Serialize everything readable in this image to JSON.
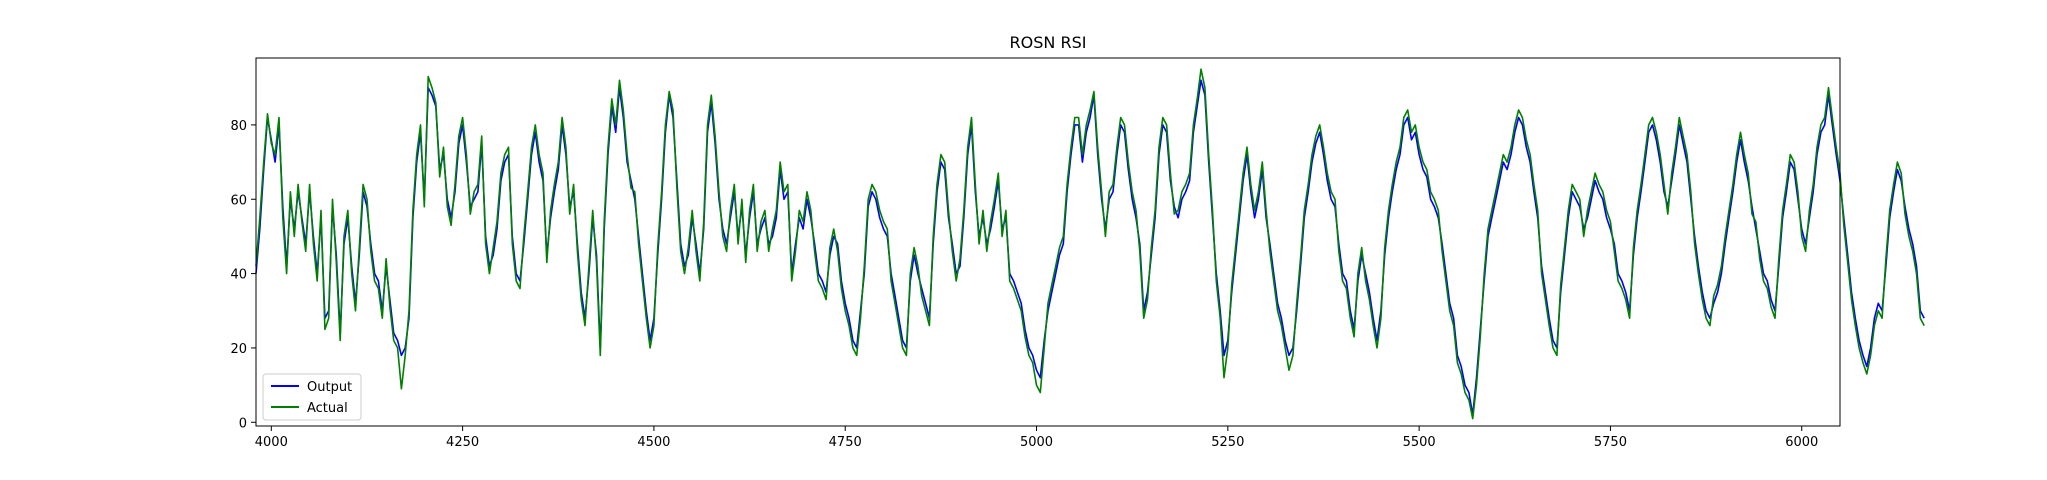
{
  "chart_data": {
    "type": "line",
    "title": "ROSN RSI",
    "xlabel": "",
    "ylabel": "",
    "xlim": [
      3980,
      6050
    ],
    "ylim": [
      -1,
      98
    ],
    "xticks": [
      4000,
      4250,
      4500,
      4750,
      5000,
      5250,
      5500,
      5750,
      6000
    ],
    "yticks": [
      0,
      20,
      40,
      60,
      80
    ],
    "grid": false,
    "legend_position": "lower-left",
    "x_start": 3980,
    "x_step": 5,
    "series": [
      {
        "name": "Output",
        "color": "#0000ff",
        "values": [
          40,
          52,
          68,
          82,
          76,
          70,
          80,
          58,
          42,
          60,
          52,
          62,
          55,
          48,
          62,
          50,
          40,
          55,
          28,
          30,
          58,
          45,
          24,
          48,
          55,
          42,
          32,
          45,
          62,
          58,
          48,
          40,
          38,
          30,
          42,
          33,
          24,
          22,
          18,
          20,
          28,
          55,
          70,
          78,
          60,
          90,
          88,
          85,
          68,
          72,
          60,
          55,
          62,
          75,
          80,
          70,
          58,
          60,
          62,
          75,
          50,
          42,
          45,
          52,
          65,
          70,
          72,
          50,
          40,
          38,
          48,
          60,
          72,
          78,
          70,
          65,
          45,
          55,
          62,
          68,
          80,
          72,
          58,
          62,
          48,
          35,
          28,
          40,
          55,
          45,
          20,
          52,
          72,
          85,
          78,
          90,
          82,
          70,
          65,
          60,
          50,
          40,
          30,
          22,
          28,
          45,
          60,
          78,
          88,
          82,
          65,
          48,
          42,
          45,
          55,
          48,
          40,
          52,
          78,
          86,
          75,
          60,
          52,
          48,
          55,
          62,
          50,
          58,
          45,
          55,
          62,
          48,
          52,
          55,
          48,
          50,
          55,
          68,
          60,
          62,
          40,
          48,
          55,
          52,
          60,
          55,
          48,
          40,
          38,
          35,
          45,
          50,
          48,
          38,
          32,
          28,
          22,
          20,
          30,
          40,
          58,
          62,
          60,
          55,
          52,
          50,
          40,
          34,
          28,
          22,
          20,
          38,
          45,
          40,
          36,
          32,
          28,
          48,
          62,
          70,
          68,
          55,
          48,
          40,
          42,
          55,
          72,
          80,
          62,
          50,
          55,
          48,
          52,
          58,
          65,
          52,
          55,
          40,
          38,
          35,
          32,
          25,
          20,
          18,
          14,
          12,
          22,
          30,
          35,
          40,
          45,
          48,
          62,
          72,
          80,
          80,
          70,
          78,
          82,
          88,
          72,
          60,
          52,
          60,
          62,
          72,
          80,
          78,
          68,
          60,
          55,
          48,
          30,
          35,
          45,
          55,
          72,
          80,
          78,
          65,
          58,
          55,
          60,
          62,
          65,
          78,
          85,
          92,
          88,
          70,
          55,
          40,
          30,
          18,
          22,
          35,
          45,
          55,
          65,
          72,
          62,
          55,
          60,
          68,
          55,
          48,
          40,
          32,
          28,
          22,
          18,
          20,
          30,
          42,
          55,
          62,
          70,
          75,
          78,
          72,
          65,
          60,
          58,
          48,
          40,
          38,
          30,
          25,
          38,
          45,
          40,
          35,
          28,
          22,
          30,
          45,
          55,
          62,
          68,
          72,
          80,
          82,
          76,
          78,
          72,
          68,
          66,
          60,
          58,
          55,
          48,
          40,
          32,
          28,
          18,
          15,
          10,
          8,
          2,
          12,
          25,
          38,
          50,
          55,
          60,
          65,
          70,
          68,
          72,
          78,
          82,
          80,
          74,
          70,
          62,
          55,
          42,
          35,
          28,
          22,
          20,
          35,
          45,
          55,
          62,
          60,
          58,
          52,
          55,
          60,
          65,
          62,
          60,
          55,
          52,
          48,
          40,
          38,
          35,
          30,
          45,
          55,
          62,
          70,
          78,
          80,
          76,
          70,
          62,
          58,
          65,
          72,
          80,
          75,
          70,
          60,
          50,
          42,
          35,
          30,
          28,
          32,
          35,
          40,
          48,
          55,
          62,
          70,
          76,
          70,
          65,
          58,
          52,
          46,
          40,
          38,
          33,
          30,
          42,
          55,
          62,
          70,
          68,
          60,
          52,
          48,
          55,
          62,
          72,
          78,
          80,
          88,
          80,
          72,
          65,
          55,
          45,
          35,
          28,
          22,
          18,
          15,
          20,
          28,
          32,
          30,
          42,
          55,
          62,
          68,
          65,
          58,
          52,
          48,
          42,
          30,
          28
        ]
      },
      {
        "name": "Actual",
        "color": "#008000",
        "values": [
          42,
          55,
          70,
          83,
          75,
          72,
          82,
          55,
          40,
          62,
          50,
          64,
          54,
          46,
          64,
          48,
          38,
          57,
          25,
          28,
          60,
          43,
          22,
          50,
          57,
          40,
          30,
          47,
          64,
          60,
          46,
          38,
          36,
          28,
          44,
          31,
          22,
          20,
          9,
          18,
          30,
          57,
          72,
          80,
          58,
          93,
          90,
          86,
          66,
          74,
          58,
          53,
          64,
          77,
          82,
          72,
          56,
          62,
          64,
          77,
          48,
          40,
          47,
          54,
          67,
          72,
          74,
          48,
          38,
          36,
          50,
          62,
          74,
          80,
          72,
          67,
          43,
          57,
          64,
          70,
          82,
          74,
          56,
          64,
          46,
          33,
          26,
          42,
          57,
          43,
          18,
          54,
          74,
          87,
          80,
          92,
          84,
          72,
          63,
          62,
          48,
          38,
          28,
          20,
          26,
          47,
          62,
          80,
          89,
          84,
          63,
          46,
          40,
          47,
          57,
          46,
          38,
          54,
          80,
          88,
          77,
          62,
          50,
          46,
          57,
          64,
          48,
          60,
          43,
          57,
          64,
          46,
          54,
          57,
          46,
          52,
          57,
          70,
          62,
          64,
          38,
          46,
          57,
          54,
          62,
          57,
          46,
          38,
          36,
          33,
          47,
          52,
          46,
          36,
          30,
          26,
          20,
          18,
          28,
          42,
          60,
          64,
          62,
          57,
          54,
          52,
          38,
          32,
          26,
          20,
          18,
          40,
          47,
          42,
          34,
          30,
          26,
          50,
          64,
          72,
          70,
          57,
          46,
          38,
          44,
          57,
          74,
          82,
          64,
          48,
          57,
          46,
          54,
          60,
          67,
          50,
          57,
          38,
          36,
          33,
          30,
          23,
          18,
          16,
          10,
          8,
          20,
          32,
          37,
          42,
          47,
          50,
          64,
          74,
          82,
          82,
          72,
          80,
          84,
          89,
          74,
          62,
          50,
          62,
          64,
          74,
          82,
          80,
          70,
          62,
          57,
          46,
          28,
          33,
          47,
          57,
          74,
          82,
          80,
          67,
          56,
          57,
          62,
          64,
          67,
          80,
          87,
          95,
          90,
          72,
          57,
          38,
          28,
          12,
          20,
          37,
          47,
          57,
          67,
          74,
          64,
          57,
          62,
          70,
          57,
          46,
          38,
          30,
          26,
          20,
          14,
          18,
          32,
          44,
          57,
          64,
          72,
          77,
          80,
          74,
          67,
          62,
          60,
          46,
          38,
          36,
          28,
          23,
          40,
          47,
          38,
          33,
          26,
          20,
          28,
          47,
          57,
          64,
          70,
          74,
          82,
          84,
          78,
          80,
          74,
          70,
          68,
          62,
          60,
          57,
          46,
          38,
          30,
          26,
          16,
          13,
          8,
          6,
          1,
          10,
          23,
          40,
          52,
          57,
          62,
          67,
          72,
          70,
          74,
          80,
          84,
          82,
          76,
          72,
          64,
          57,
          40,
          33,
          26,
          20,
          18,
          37,
          47,
          57,
          64,
          62,
          60,
          50,
          57,
          62,
          67,
          64,
          62,
          57,
          54,
          46,
          38,
          36,
          33,
          28,
          47,
          57,
          64,
          72,
          80,
          82,
          78,
          72,
          64,
          56,
          67,
          74,
          82,
          77,
          72,
          62,
          48,
          40,
          33,
          28,
          26,
          34,
          37,
          42,
          50,
          57,
          64,
          72,
          78,
          72,
          67,
          56,
          54,
          44,
          38,
          36,
          31,
          28,
          44,
          57,
          64,
          72,
          70,
          62,
          50,
          46,
          57,
          64,
          74,
          80,
          82,
          90,
          82,
          74,
          67,
          53,
          43,
          33,
          26,
          20,
          16,
          13,
          18,
          26,
          30,
          28,
          44,
          57,
          64,
          70,
          67,
          56,
          50,
          46,
          40,
          28,
          26
        ]
      }
    ]
  }
}
